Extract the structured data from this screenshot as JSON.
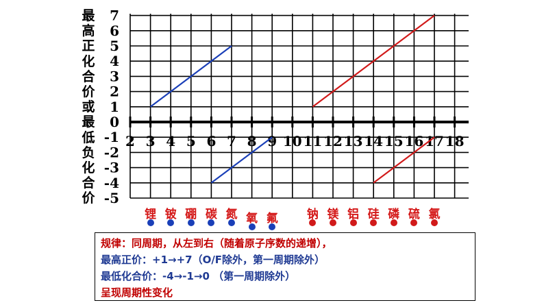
{
  "chart_data": {
    "type": "line",
    "ylabel": "最高正化合价或最低负化合价",
    "x": [
      2,
      3,
      4,
      5,
      6,
      7,
      8,
      9,
      10,
      11,
      12,
      13,
      14,
      15,
      16,
      17,
      18
    ],
    "xlim": [
      2,
      18
    ],
    "ylim": [
      -5,
      7
    ],
    "y_ticks": [
      7,
      6,
      5,
      4,
      3,
      2,
      1,
      0,
      -1,
      -2,
      -3,
      -4,
      -5
    ],
    "grid": true,
    "series": [
      {
        "color": "#1a3fb8",
        "points": [
          [
            3,
            1
          ],
          [
            7,
            5
          ]
        ]
      },
      {
        "color": "#1a3fb8",
        "points": [
          [
            6,
            -4
          ],
          [
            9,
            -1
          ]
        ]
      },
      {
        "color": "#d11a1a",
        "points": [
          [
            11,
            1
          ],
          [
            17,
            7
          ]
        ]
      },
      {
        "color": "#d11a1a",
        "points": [
          [
            14,
            -4
          ],
          [
            17,
            -1
          ]
        ]
      }
    ]
  },
  "elements": [
    {
      "name": "锂",
      "x": 3,
      "color": "#1a3fb8",
      "offset": 0
    },
    {
      "name": "铍",
      "x": 4,
      "color": "#1a3fb8",
      "offset": 0
    },
    {
      "name": "硼",
      "x": 5,
      "color": "#1a3fb8",
      "offset": 0
    },
    {
      "name": "碳",
      "x": 6,
      "color": "#1a3fb8",
      "offset": 0
    },
    {
      "name": "氮",
      "x": 7,
      "color": "#1a3fb8",
      "offset": 0
    },
    {
      "name": "氧",
      "x": 8,
      "color": "#1a3fb8",
      "offset": 1
    },
    {
      "name": "氟",
      "x": 9,
      "color": "#1a3fb8",
      "offset": 1
    },
    {
      "name": "钠",
      "x": 11,
      "color": "#d11a1a",
      "offset": 0
    },
    {
      "name": "镁",
      "x": 12,
      "color": "#d11a1a",
      "offset": 0
    },
    {
      "name": "铝",
      "x": 13,
      "color": "#d11a1a",
      "offset": 0
    },
    {
      "name": "硅",
      "x": 14,
      "color": "#d11a1a",
      "offset": 0
    },
    {
      "name": "磷",
      "x": 15,
      "color": "#d11a1a",
      "offset": 0
    },
    {
      "name": "硫",
      "x": 16,
      "color": "#d11a1a",
      "offset": 0
    },
    {
      "name": "氯",
      "x": 17,
      "color": "#d11a1a",
      "offset": 0
    }
  ],
  "rules": {
    "line1": "规律：同周期，从左到右（随着原子序数的递增），",
    "line2": "最高正价：+1→+7（O/F除外，第一周期除外）",
    "line3": "最低化合价：-4→-1→0 （第一周期除外）",
    "line4": "呈现周期性变化",
    "colors": {
      "line1": "#c00000",
      "line2": "#1f3a93",
      "line3": "#1f3a93",
      "line4": "#c00000"
    }
  }
}
